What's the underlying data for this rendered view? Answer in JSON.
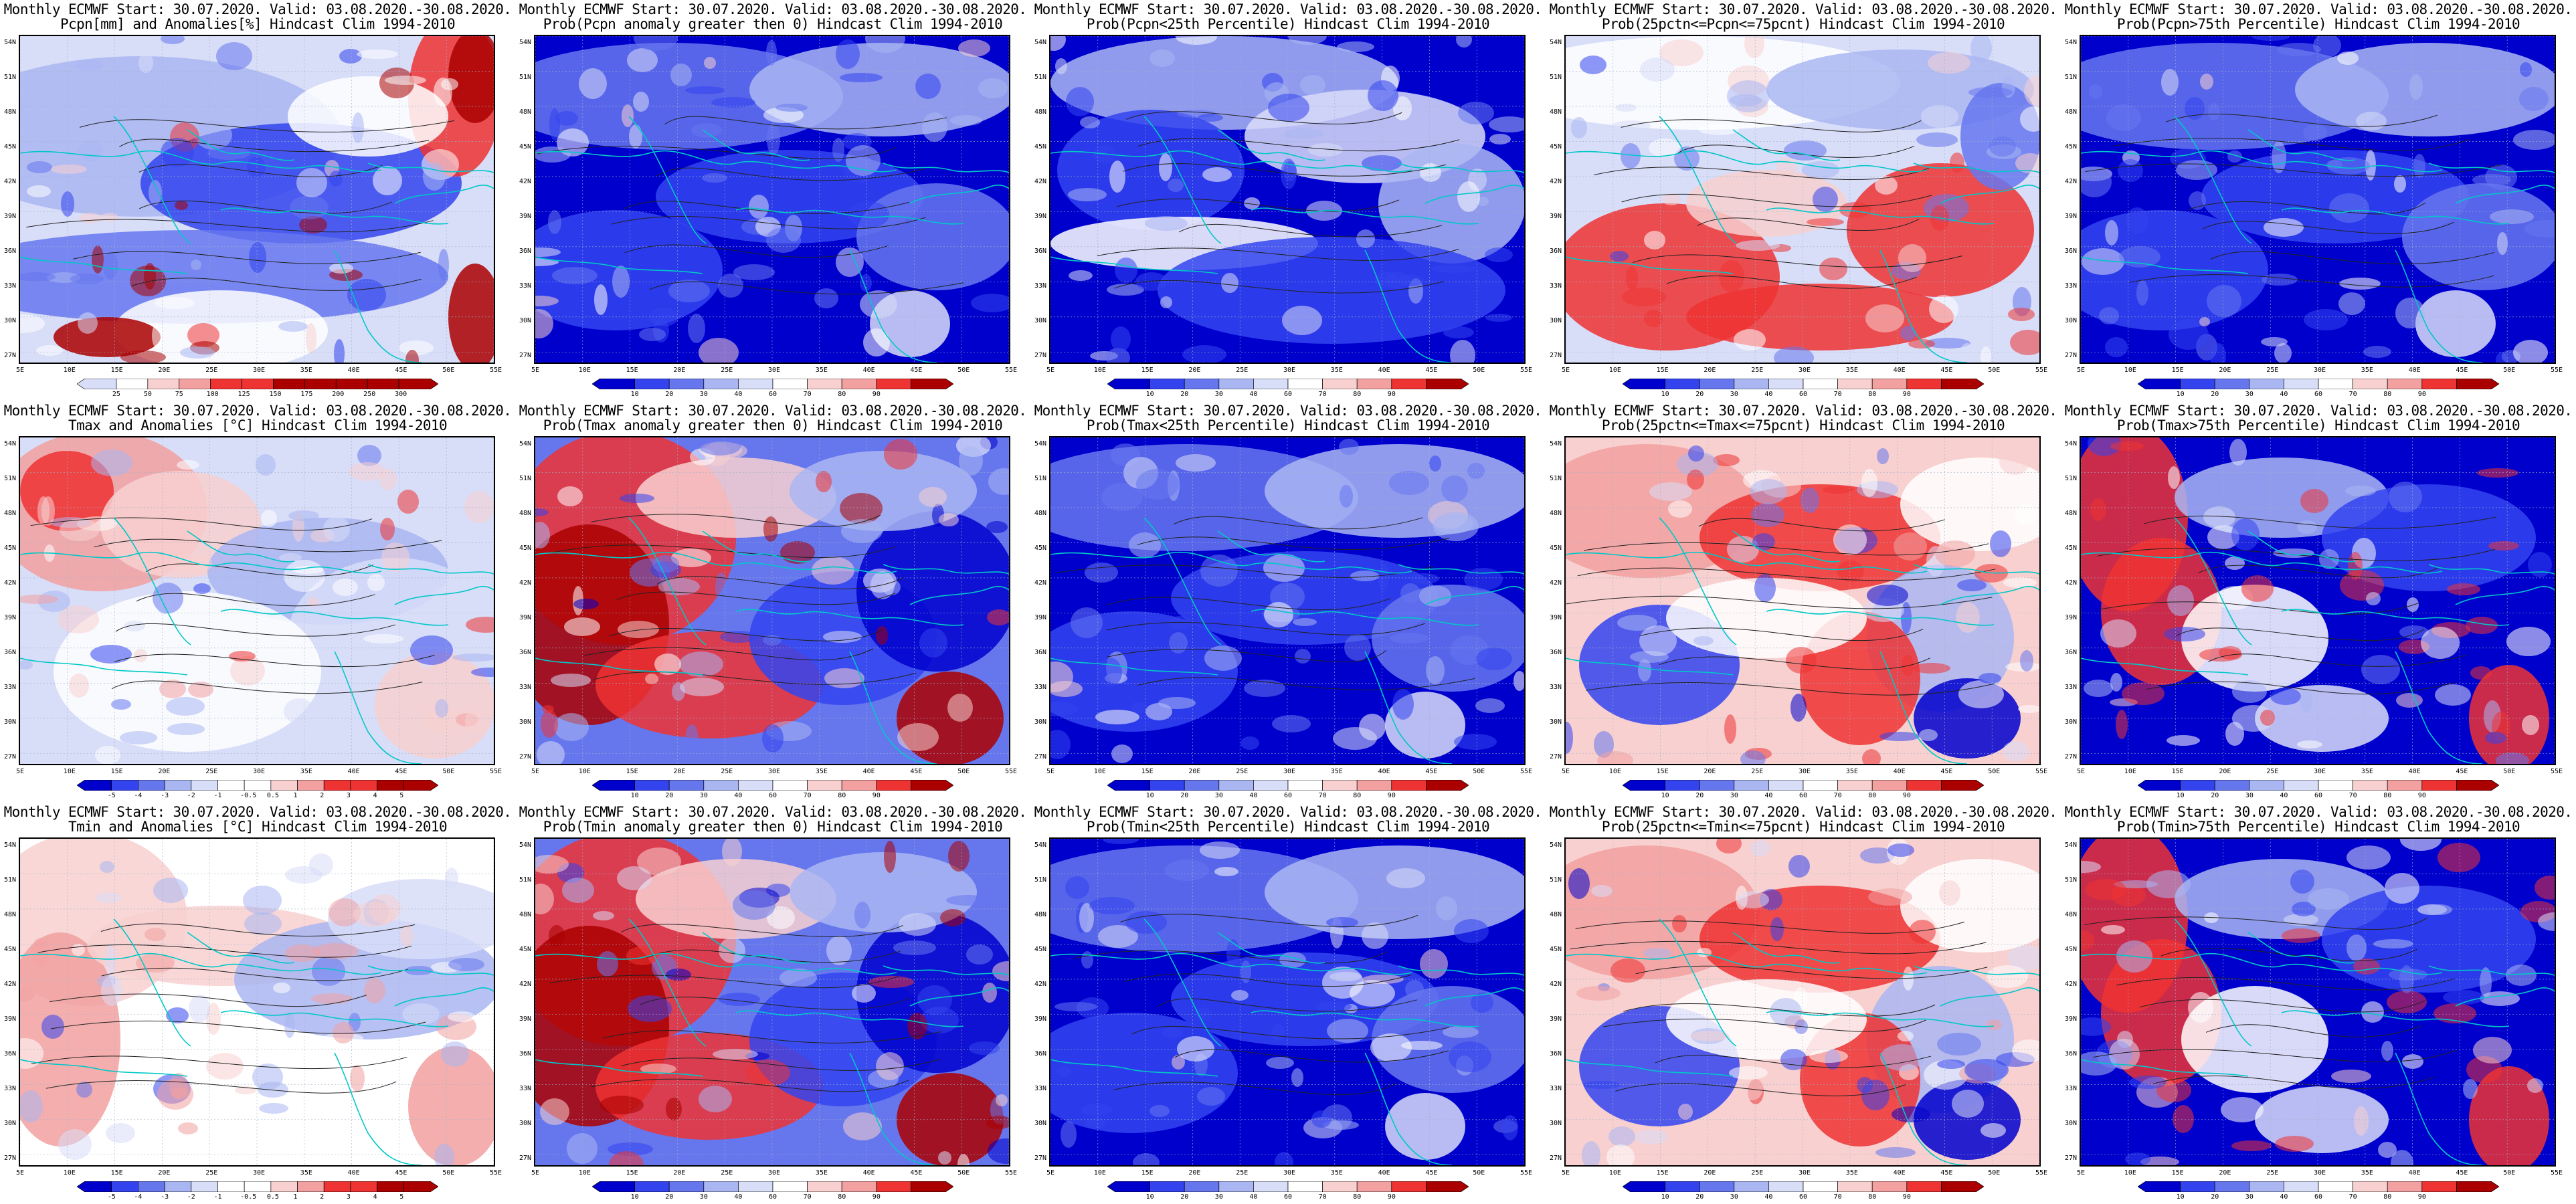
{
  "colors": {
    "deep_blue": "#0000cc",
    "blue": "#3344ee",
    "mid_blue": "#6677ee",
    "light_blue": "#aab6f2",
    "pale_blue": "#d8ddf8",
    "white": "#ffffff",
    "pale_red": "#f8d0d0",
    "light_red": "#f2a0a0",
    "red": "#ee3333",
    "dark_red": "#aa0000",
    "coast": "#00c8c8",
    "contour": "#222222"
  },
  "lat_labels": [
    "54N",
    "51N",
    "48N",
    "45N",
    "42N",
    "39N",
    "36N",
    "33N",
    "30N",
    "27N"
  ],
  "lon_labels": [
    "5E",
    "10E",
    "15E",
    "20E",
    "25E",
    "30E",
    "35E",
    "40E",
    "45E",
    "50E",
    "55E"
  ],
  "panels": [
    {
      "title1": "Monthly ECMWF Start: 30.07.2020. Valid: 03.08.2020.-30.08.2020.",
      "title2": "Pcpn[mm] and Anomalies[%] Hindcast Clim 1994-2010",
      "scheme": "pcpn_anom",
      "cbar_ticks": [
        "25",
        "50",
        "75",
        "100",
        "125",
        "150",
        "175",
        "200",
        "250",
        "300"
      ]
    },
    {
      "title1": "Monthly ECMWF Start: 30.07.2020. Valid: 03.08.2020.-30.08.2020.",
      "title2": "Prob(Pcpn anomaly greater then 0) Hindcast Clim 1994-2010",
      "scheme": "prob_blue",
      "cbar_ticks": [
        "10",
        "20",
        "30",
        "40",
        "60",
        "70",
        "80",
        "90"
      ]
    },
    {
      "title1": "Monthly ECMWF Start: 30.07.2020. Valid: 03.08.2020.-30.08.2020.",
      "title2": "Prob(Pcpn<25th Percentile) Hindcast Clim 1994-2010",
      "scheme": "prob_mixed_blue",
      "cbar_ticks": [
        "10",
        "20",
        "30",
        "40",
        "60",
        "70",
        "80",
        "90"
      ]
    },
    {
      "title1": "Monthly ECMWF Start: 30.07.2020. Valid: 03.08.2020.-30.08.2020.",
      "title2": "Prob(25pctn<=Pcpn<=75pcnt) Hindcast Clim 1994-2010",
      "scheme": "prob_red_south",
      "cbar_ticks": [
        "10",
        "20",
        "30",
        "40",
        "60",
        "70",
        "80",
        "90"
      ]
    },
    {
      "title1": "Monthly ECMWF Start: 30.07.2020. Valid: 03.08.2020.-30.08.2020.",
      "title2": "Prob(Pcpn>75th Percentile) Hindcast Clim 1994-2010",
      "scheme": "prob_blue",
      "cbar_ticks": [
        "10",
        "20",
        "30",
        "40",
        "60",
        "70",
        "80",
        "90"
      ]
    },
    {
      "title1": "Monthly ECMWF Start: 30.07.2020. Valid: 03.08.2020.-30.08.2020.",
      "title2": "Tmax and Anomalies [°C] Hindcast Clim 1994-2010",
      "scheme": "temp_anom",
      "cbar_ticks": [
        "-5",
        "-4",
        "-3",
        "-2",
        "-1",
        "-0.5",
        "0.5",
        "1",
        "2",
        "3",
        "4",
        "5"
      ]
    },
    {
      "title1": "Monthly ECMWF Start: 30.07.2020. Valid: 03.08.2020.-30.08.2020.",
      "title2": "Prob(Tmax anomaly greater then 0) Hindcast Clim 1994-2010",
      "scheme": "prob_red_west",
      "cbar_ticks": [
        "10",
        "20",
        "30",
        "40",
        "60",
        "70",
        "80",
        "90"
      ]
    },
    {
      "title1": "Monthly ECMWF Start: 30.07.2020. Valid: 03.08.2020.-30.08.2020.",
      "title2": "Prob(Tmax<25th Percentile) Hindcast Clim 1994-2010",
      "scheme": "prob_blue",
      "cbar_ticks": [
        "10",
        "20",
        "30",
        "40",
        "60",
        "70",
        "80",
        "90"
      ]
    },
    {
      "title1": "Monthly ECMWF Start: 30.07.2020. Valid: 03.08.2020.-30.08.2020.",
      "title2": "Prob(25pctn<=Tmax<=75pcnt) Hindcast Clim 1994-2010",
      "scheme": "prob_mixed_red",
      "cbar_ticks": [
        "10",
        "20",
        "30",
        "40",
        "60",
        "70",
        "80",
        "90"
      ]
    },
    {
      "title1": "Monthly ECMWF Start: 30.07.2020. Valid: 03.08.2020.-30.08.2020.",
      "title2": "Prob(Tmax>75th Percentile) Hindcast Clim 1994-2010",
      "scheme": "prob_blue_redwest",
      "cbar_ticks": [
        "10",
        "20",
        "30",
        "40",
        "60",
        "70",
        "80",
        "90"
      ]
    },
    {
      "title1": "Monthly ECMWF Start: 30.07.2020. Valid: 03.08.2020.-30.08.2020.",
      "title2": "Tmin and Anomalies [°C] Hindcast Clim 1994-2010",
      "scheme": "temp_anom_light",
      "cbar_ticks": [
        "-5",
        "-4",
        "-3",
        "-2",
        "-1",
        "-0.5",
        "0.5",
        "1",
        "2",
        "3",
        "4",
        "5"
      ]
    },
    {
      "title1": "Monthly ECMWF Start: 30.07.2020. Valid: 03.08.2020.-30.08.2020.",
      "title2": "Prob(Tmin anomaly greater then 0) Hindcast Clim 1994-2010",
      "scheme": "prob_red_west",
      "cbar_ticks": [
        "10",
        "20",
        "30",
        "40",
        "60",
        "70",
        "80",
        "90"
      ]
    },
    {
      "title1": "Monthly ECMWF Start: 30.07.2020. Valid: 03.08.2020.-30.08.2020.",
      "title2": "Prob(Tmin<25th Percentile) Hindcast Clim 1994-2010",
      "scheme": "prob_blue",
      "cbar_ticks": [
        "10",
        "20",
        "30",
        "40",
        "60",
        "70",
        "80",
        "90"
      ]
    },
    {
      "title1": "Monthly ECMWF Start: 30.07.2020. Valid: 03.08.2020.-30.08.2020.",
      "title2": "Prob(25pctn<=Tmin<=75pcnt) Hindcast Clim 1994-2010",
      "scheme": "prob_mixed_red",
      "cbar_ticks": [
        "10",
        "20",
        "30",
        "40",
        "60",
        "70",
        "80",
        "90"
      ]
    },
    {
      "title1": "Monthly ECMWF Start: 30.07.2020. Valid: 03.08.2020.-30.08.2020.",
      "title2": "Prob(Tmin>75th Percentile) Hindcast Clim 1994-2010",
      "scheme": "prob_blue_redwest",
      "cbar_ticks": [
        "10",
        "20",
        "30",
        "40",
        "60",
        "70",
        "80",
        "90"
      ]
    }
  ]
}
